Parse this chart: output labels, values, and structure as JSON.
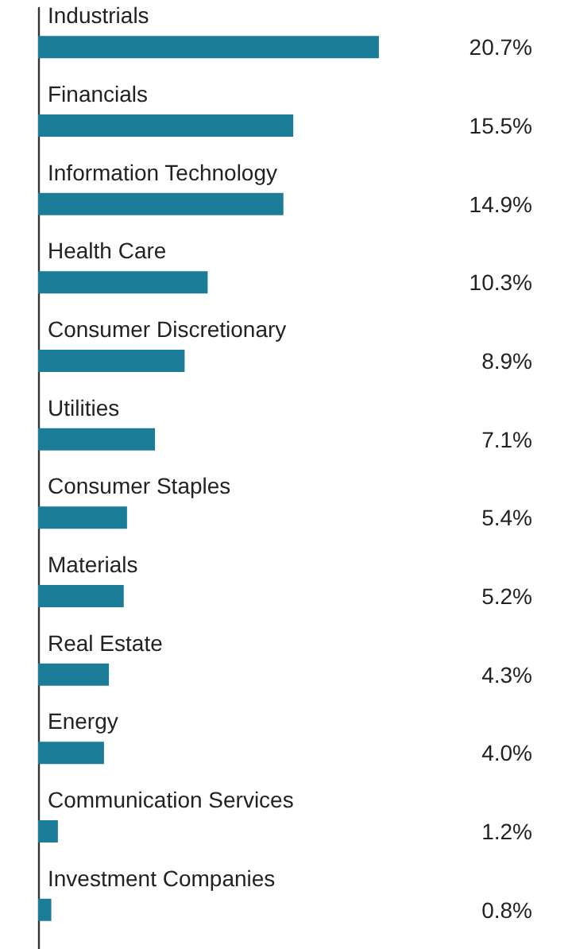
{
  "chart_data": {
    "type": "bar",
    "orientation": "horizontal",
    "categories": [
      "Industrials",
      "Financials",
      "Information Technology",
      "Health Care",
      "Consumer Discretionary",
      "Utilities",
      "Consumer Staples",
      "Materials",
      "Real Estate",
      "Energy",
      "Communication Services",
      "Investment Companies"
    ],
    "values": [
      20.7,
      15.5,
      14.9,
      10.3,
      8.9,
      7.1,
      5.4,
      5.2,
      4.3,
      4.0,
      1.2,
      0.8
    ],
    "value_labels": [
      "20.7%",
      "15.5%",
      "14.9%",
      "10.3%",
      "8.9%",
      "7.1%",
      "5.4%",
      "5.2%",
      "4.3%",
      "4.0%",
      "1.2%",
      "0.8%"
    ],
    "color": "#1b7c98"
  }
}
